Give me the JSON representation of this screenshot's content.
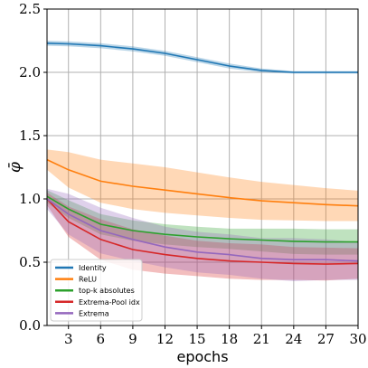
{
  "chart_data": {
    "type": "line",
    "xlabel": "epochs",
    "ylabel": "φ̄",
    "xlim": [
      1,
      30
    ],
    "ylim": [
      0,
      2.5
    ],
    "xticks": [
      3,
      6,
      9,
      12,
      15,
      18,
      21,
      24,
      27,
      30
    ],
    "yticks": [
      0.0,
      0.5,
      1.0,
      1.5,
      2.0,
      2.5
    ],
    "xtick_labels": [
      "3",
      "6",
      "9",
      "12",
      "15",
      "18",
      "21",
      "24",
      "27",
      "30"
    ],
    "ytick_labels": [
      "0.0",
      "0.5",
      "1.0",
      "1.5",
      "2.0",
      "2.5"
    ],
    "grid": true,
    "legend_position": "bottom-left",
    "x": [
      1,
      3,
      6,
      9,
      12,
      15,
      18,
      21,
      24,
      27,
      30
    ],
    "series": [
      {
        "name": "Identity",
        "color": "#1f77b4",
        "values": [
          2.23,
          2.225,
          2.21,
          2.185,
          2.15,
          2.1,
          2.05,
          2.015,
          2.0,
          2.0,
          2.0
        ],
        "band": [
          0.02,
          0.02,
          0.02,
          0.02,
          0.02,
          0.02,
          0.02,
          0.015,
          0.01,
          0.01,
          0.01
        ]
      },
      {
        "name": "ReLU",
        "color": "#ff7f0e",
        "values": [
          1.31,
          1.23,
          1.14,
          1.1,
          1.07,
          1.04,
          1.01,
          0.985,
          0.97,
          0.955,
          0.945
        ],
        "band": [
          0.08,
          0.14,
          0.17,
          0.18,
          0.18,
          0.17,
          0.16,
          0.15,
          0.14,
          0.13,
          0.12
        ]
      },
      {
        "name": "top-k absolutes",
        "color": "#2ca02c",
        "values": [
          1.02,
          0.92,
          0.8,
          0.75,
          0.72,
          0.7,
          0.685,
          0.675,
          0.665,
          0.66,
          0.66
        ],
        "band": [
          0.05,
          0.07,
          0.08,
          0.08,
          0.08,
          0.08,
          0.08,
          0.09,
          0.1,
          0.1,
          0.1
        ]
      },
      {
        "name": "Extrema-Pool idx",
        "color": "#d62728",
        "values": [
          1.0,
          0.82,
          0.68,
          0.6,
          0.56,
          0.53,
          0.51,
          0.5,
          0.49,
          0.485,
          0.49
        ],
        "band": [
          0.05,
          0.12,
          0.16,
          0.16,
          0.15,
          0.14,
          0.14,
          0.14,
          0.13,
          0.13,
          0.12
        ]
      },
      {
        "name": "Extrema",
        "color": "#9467bd",
        "values": [
          1.0,
          0.88,
          0.75,
          0.68,
          0.62,
          0.58,
          0.56,
          0.53,
          0.52,
          0.52,
          0.51
        ],
        "band": [
          0.08,
          0.16,
          0.18,
          0.17,
          0.16,
          0.16,
          0.16,
          0.16,
          0.17,
          0.16,
          0.15
        ]
      }
    ]
  }
}
